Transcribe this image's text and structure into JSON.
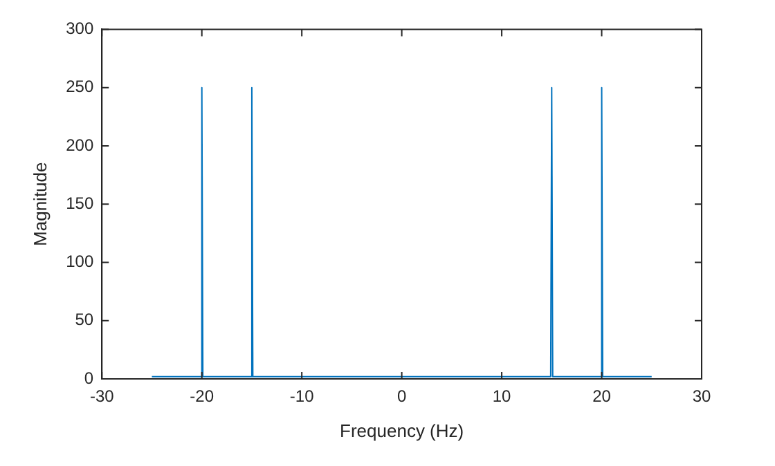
{
  "chart_data": {
    "type": "line",
    "xlabel": "Frequency (Hz)",
    "ylabel": "Magnitude",
    "x": [
      -25,
      -20.1,
      -20,
      -19.9,
      -15.1,
      -15,
      -14.9,
      14.9,
      15,
      15.1,
      19.9,
      20,
      20.1,
      25
    ],
    "series": [
      {
        "color": "#0072bd",
        "values": [
          2,
          2,
          250,
          2,
          2,
          250,
          2,
          2,
          250,
          2,
          2,
          250,
          2,
          2
        ]
      }
    ],
    "xlim": [
      -30,
      30
    ],
    "xticks": [
      -30,
      -20,
      -10,
      0,
      10,
      20,
      30
    ],
    "ylim": [
      0,
      300
    ],
    "yticks": [
      0,
      50,
      100,
      150,
      200,
      250,
      300
    ],
    "grid": false,
    "legend": false,
    "marker": "none",
    "line_style": "solid"
  }
}
